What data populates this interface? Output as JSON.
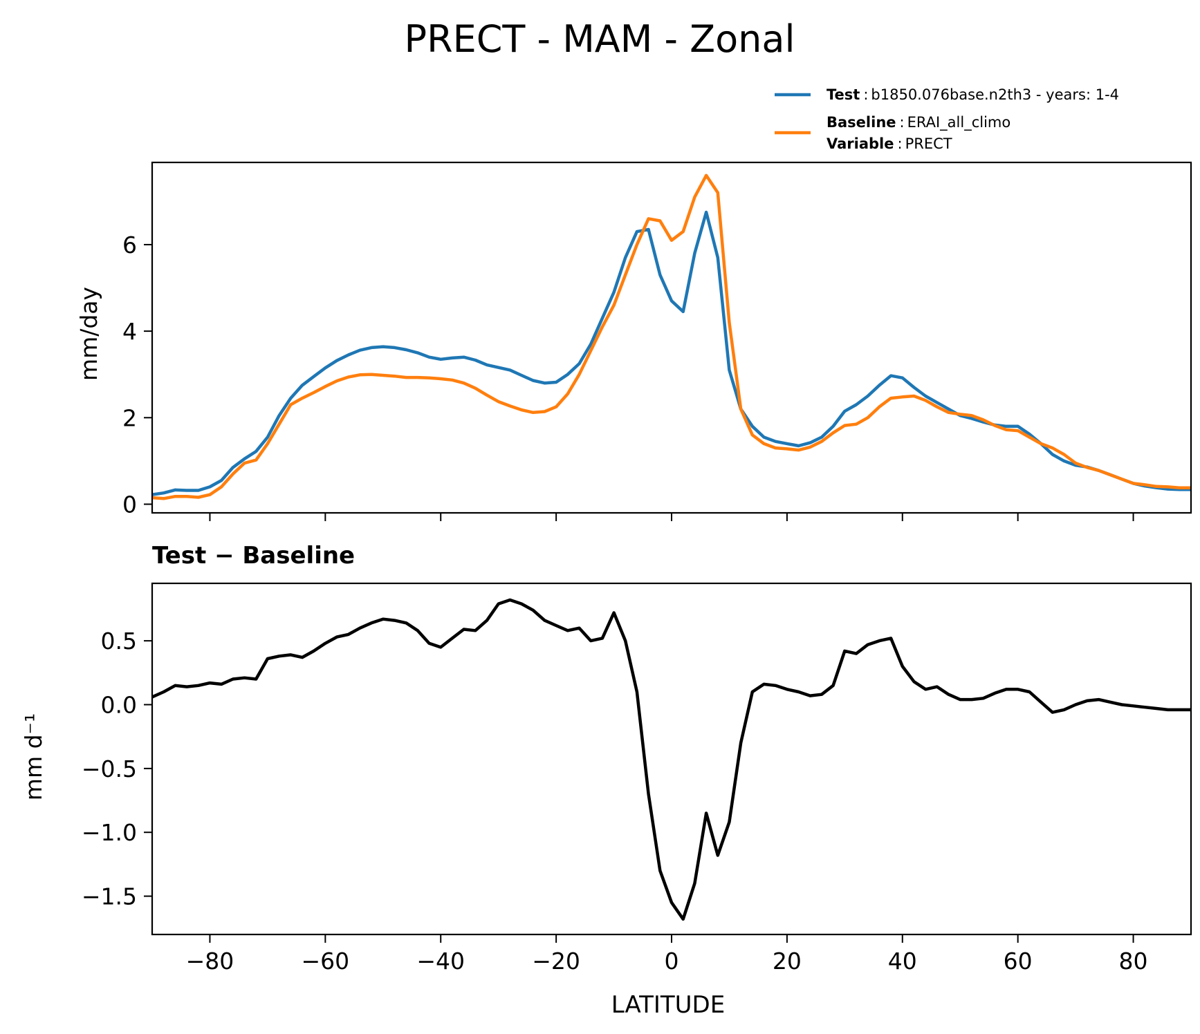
{
  "title": "PRECT - MAM - Zonal",
  "legend": {
    "test_label": "Test",
    "test_value": "b1850.076base.n2th3 - years: 1-4",
    "baseline_label": "Baseline",
    "baseline_value": "ERAI_all_climo",
    "variable_label": "Variable",
    "variable_value": "PRECT",
    "sep": ":"
  },
  "colors": {
    "test": "#1f77b4",
    "baseline": "#ff7f0e",
    "diff": "#000000"
  },
  "chart_data": [
    {
      "type": "line",
      "title": "",
      "xlabel": "",
      "ylabel": "mm/day",
      "xlim": [
        -90,
        90
      ],
      "ylim": [
        -0.2,
        7.9
      ],
      "xticks": [
        -80,
        -60,
        -40,
        -20,
        0,
        20,
        40,
        60,
        80
      ],
      "yticks": [
        0,
        2,
        4,
        6
      ],
      "ytick_labels": [
        "0",
        "2",
        "4",
        "6"
      ],
      "x": [
        -90,
        -88,
        -86,
        -84,
        -82,
        -80,
        -78,
        -76,
        -74,
        -72,
        -70,
        -68,
        -66,
        -64,
        -62,
        -60,
        -58,
        -56,
        -54,
        -52,
        -50,
        -48,
        -46,
        -44,
        -42,
        -40,
        -38,
        -36,
        -34,
        -32,
        -30,
        -28,
        -26,
        -24,
        -22,
        -20,
        -18,
        -16,
        -14,
        -12,
        -10,
        -8,
        -6,
        -4,
        -2,
        0,
        2,
        4,
        6,
        8,
        10,
        12,
        14,
        16,
        18,
        20,
        22,
        24,
        26,
        28,
        30,
        32,
        34,
        36,
        38,
        40,
        42,
        44,
        46,
        48,
        50,
        52,
        54,
        56,
        58,
        60,
        62,
        64,
        66,
        68,
        70,
        72,
        74,
        76,
        78,
        80,
        82,
        84,
        86,
        88,
        90
      ],
      "series": [
        {
          "name": "Test",
          "values": [
            0.22,
            0.26,
            0.33,
            0.32,
            0.32,
            0.4,
            0.55,
            0.85,
            1.05,
            1.22,
            1.55,
            2.05,
            2.45,
            2.75,
            2.95,
            3.15,
            3.32,
            3.45,
            3.56,
            3.62,
            3.64,
            3.62,
            3.57,
            3.5,
            3.4,
            3.35,
            3.38,
            3.4,
            3.33,
            3.22,
            3.16,
            3.1,
            2.98,
            2.86,
            2.8,
            2.82,
            3.0,
            3.25,
            3.7,
            4.3,
            4.9,
            5.7,
            6.3,
            6.35,
            5.3,
            4.7,
            4.45,
            5.8,
            6.75,
            5.7,
            3.1,
            2.2,
            1.8,
            1.55,
            1.45,
            1.4,
            1.35,
            1.42,
            1.55,
            1.8,
            2.15,
            2.3,
            2.5,
            2.75,
            2.97,
            2.92,
            2.7,
            2.5,
            2.35,
            2.2,
            2.05,
            1.98,
            1.9,
            1.83,
            1.8,
            1.8,
            1.62,
            1.4,
            1.15,
            1.0,
            0.9,
            0.86,
            0.78,
            0.68,
            0.58,
            0.48,
            0.42,
            0.38,
            0.35,
            0.34,
            0.34
          ]
        },
        {
          "name": "Baseline",
          "values": [
            0.15,
            0.13,
            0.18,
            0.18,
            0.16,
            0.22,
            0.4,
            0.7,
            0.95,
            1.02,
            1.4,
            1.85,
            2.3,
            2.45,
            2.58,
            2.72,
            2.85,
            2.94,
            2.99,
            3.0,
            2.98,
            2.96,
            2.93,
            2.93,
            2.92,
            2.9,
            2.87,
            2.8,
            2.68,
            2.52,
            2.37,
            2.27,
            2.18,
            2.12,
            2.14,
            2.25,
            2.55,
            3.0,
            3.55,
            4.1,
            4.6,
            5.3,
            6.0,
            6.6,
            6.55,
            6.1,
            6.3,
            7.1,
            7.6,
            7.2,
            4.2,
            2.2,
            1.6,
            1.4,
            1.3,
            1.28,
            1.25,
            1.32,
            1.45,
            1.65,
            1.82,
            1.85,
            2.0,
            2.25,
            2.45,
            2.48,
            2.5,
            2.4,
            2.25,
            2.12,
            2.08,
            2.05,
            1.95,
            1.82,
            1.72,
            1.7,
            1.55,
            1.4,
            1.3,
            1.15,
            0.95,
            0.85,
            0.78,
            0.68,
            0.58,
            0.48,
            0.45,
            0.41,
            0.4,
            0.38,
            0.38
          ]
        }
      ]
    },
    {
      "type": "line",
      "title": "Test − Baseline",
      "xlabel": "LATITUDE",
      "ylabel": "mm d⁻¹",
      "xlim": [
        -90,
        90
      ],
      "ylim": [
        -1.8,
        0.95
      ],
      "xticks": [
        -80,
        -60,
        -40,
        -20,
        0,
        20,
        40,
        60,
        80
      ],
      "xtick_labels": [
        "−80",
        "−60",
        "−40",
        "−20",
        "0",
        "20",
        "40",
        "60",
        "80"
      ],
      "yticks": [
        0.5,
        0.0,
        -0.5,
        -1.0,
        -1.5
      ],
      "ytick_labels": [
        "0.5",
        "0.0",
        "−0.5",
        "−1.0",
        "−1.5"
      ],
      "x": [
        -90,
        -88,
        -86,
        -84,
        -82,
        -80,
        -78,
        -76,
        -74,
        -72,
        -70,
        -68,
        -66,
        -64,
        -62,
        -60,
        -58,
        -56,
        -54,
        -52,
        -50,
        -48,
        -46,
        -44,
        -42,
        -40,
        -38,
        -36,
        -34,
        -32,
        -30,
        -28,
        -26,
        -24,
        -22,
        -20,
        -18,
        -16,
        -14,
        -12,
        -10,
        -8,
        -6,
        -4,
        -2,
        0,
        2,
        4,
        6,
        8,
        10,
        12,
        14,
        16,
        18,
        20,
        22,
        24,
        26,
        28,
        30,
        32,
        34,
        36,
        38,
        40,
        42,
        44,
        46,
        48,
        50,
        52,
        54,
        56,
        58,
        60,
        62,
        64,
        66,
        68,
        70,
        72,
        74,
        76,
        78,
        80,
        82,
        84,
        86,
        88,
        90
      ],
      "series": [
        {
          "name": "Test - Baseline",
          "values": [
            0.06,
            0.1,
            0.15,
            0.14,
            0.15,
            0.17,
            0.16,
            0.2,
            0.21,
            0.2,
            0.36,
            0.38,
            0.39,
            0.37,
            0.42,
            0.48,
            0.53,
            0.55,
            0.6,
            0.64,
            0.67,
            0.66,
            0.64,
            0.58,
            0.48,
            0.45,
            0.52,
            0.59,
            0.58,
            0.66,
            0.79,
            0.82,
            0.79,
            0.74,
            0.66,
            0.62,
            0.58,
            0.6,
            0.5,
            0.52,
            0.72,
            0.5,
            0.1,
            -0.7,
            -1.3,
            -1.55,
            -1.68,
            -1.4,
            -0.85,
            -1.18,
            -0.92,
            -0.3,
            0.1,
            0.16,
            0.15,
            0.12,
            0.1,
            0.07,
            0.08,
            0.15,
            0.42,
            0.4,
            0.47,
            0.5,
            0.52,
            0.3,
            0.18,
            0.12,
            0.14,
            0.08,
            0.04,
            0.04,
            0.05,
            0.09,
            0.12,
            0.12,
            0.1,
            0.02,
            -0.06,
            -0.04,
            0.0,
            0.03,
            0.04,
            0.02,
            0.0,
            -0.01,
            -0.02,
            -0.03,
            -0.04,
            -0.04,
            -0.04
          ]
        }
      ]
    }
  ]
}
